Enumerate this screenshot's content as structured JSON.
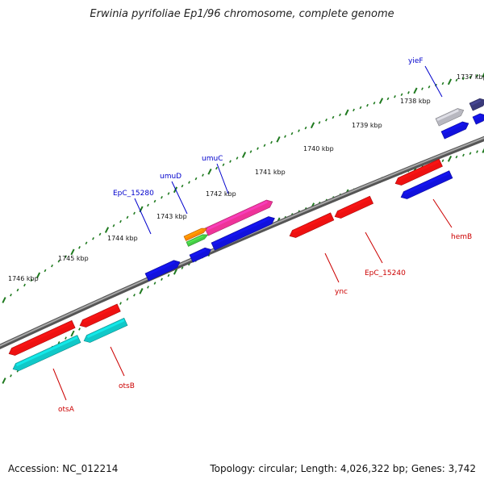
{
  "title": "Erwinia pyrifoliae Ep1/96 chromosome, complete genome",
  "footer": {
    "accession": "Accession: NC_012214",
    "summary": "Topology: circular; Length: 4,026,322 bp; Genes: 3,742"
  },
  "scale_labels": [
    "1737 kbp",
    "1738 kbp",
    "1739 kbp",
    "1740 kbp",
    "1741 kbp",
    "1742 kbp",
    "1743 kbp",
    "1744 kbp",
    "1745 kbp",
    "1746 kbp"
  ],
  "colors": {
    "backbone": "#707070",
    "tick": "#1f7a1f",
    "label_forward": "#0000cc",
    "label_reverse": "#cc0000",
    "red": "#ee1111",
    "blue": "#1111dd",
    "cyan": "#11c8c8",
    "magenta": "#ee3399",
    "orange": "#ff8800",
    "green": "#44cc44",
    "gray": "#b8b8c0",
    "navy": "#3a3a7a"
  },
  "gene_labels": {
    "forward": [
      "yieF",
      "umuC",
      "umuD",
      "EpC_15280"
    ],
    "reverse": [
      "hemB",
      "EpC_15240",
      "ync",
      "otsB",
      "otsA"
    ]
  }
}
